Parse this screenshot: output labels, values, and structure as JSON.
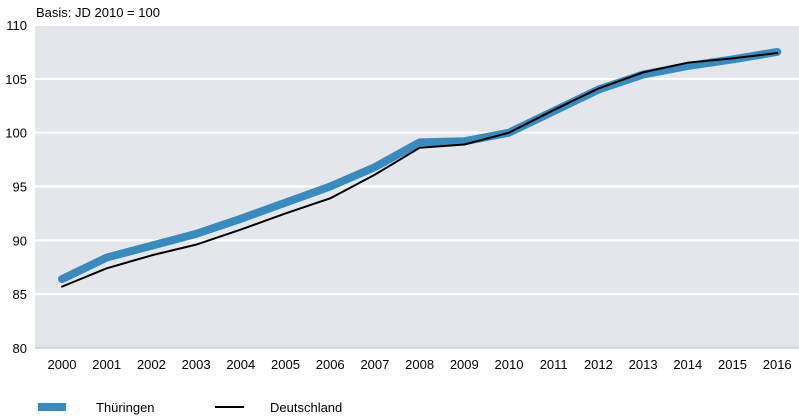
{
  "chart_data": {
    "type": "line",
    "subtitle": "Basis: JD 2010 = 100",
    "x": [
      "2000",
      "2001",
      "2002",
      "2003",
      "2004",
      "2005",
      "2006",
      "2007",
      "2008",
      "2009",
      "2010",
      "2011",
      "2012",
      "2013",
      "2014",
      "2015",
      "2016"
    ],
    "ylim": [
      80,
      110
    ],
    "yticks": [
      80,
      85,
      90,
      95,
      100,
      105,
      110
    ],
    "grid": true,
    "legend_position": "bottom-left",
    "series": [
      {
        "name": "Thüringen",
        "color": "#3a8bbd",
        "values": [
          86.4,
          88.4,
          89.5,
          90.6,
          92.0,
          93.5,
          95.0,
          96.8,
          99.1,
          99.2,
          100.0,
          102.0,
          104.0,
          105.4,
          106.2,
          106.8,
          107.5
        ]
      },
      {
        "name": "Deutschland",
        "color": "#000000",
        "values": [
          85.7,
          87.4,
          88.6,
          89.6,
          91.0,
          92.5,
          93.9,
          96.1,
          98.6,
          98.9,
          100.0,
          102.1,
          104.1,
          105.6,
          106.5,
          106.9,
          107.4
        ]
      }
    ]
  }
}
